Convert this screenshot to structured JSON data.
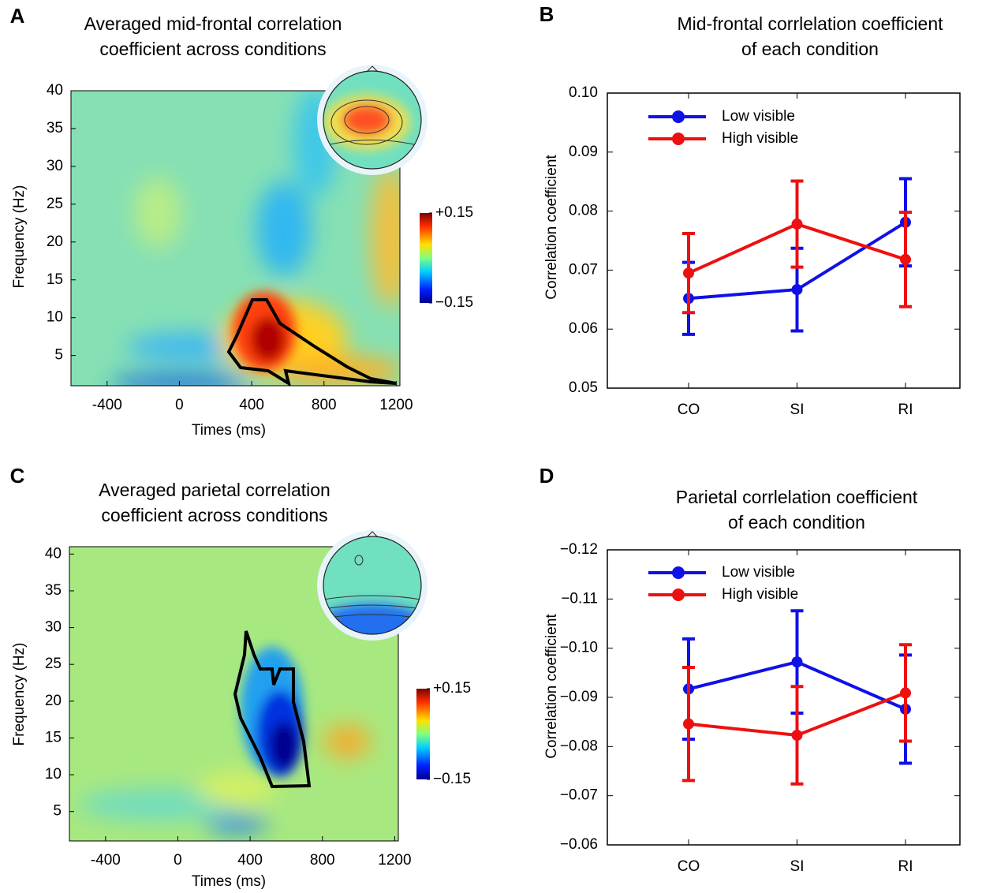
{
  "chart_data": [
    {
      "type": "heatmap",
      "panel": "A",
      "title": [
        "Averaged mid-frontal correlation",
        "coefficient across conditions"
      ],
      "xlabel": "Times (ms)",
      "ylabel": "Frequency (Hz)",
      "xlim": [
        -600,
        1220
      ],
      "xticks": [
        -400,
        0,
        400,
        800,
        1200
      ],
      "ylim": [
        1,
        40
      ],
      "yticks": [
        5,
        10,
        15,
        20,
        25,
        30,
        35,
        40
      ],
      "colorbar_ticks": [
        {
          "value": 0.15,
          "label": "+0.15"
        },
        {
          "value": -0.15,
          "label": "−0.15"
        }
      ]
    },
    {
      "type": "line",
      "panel": "B",
      "title": [
        "Mid-frontal corrlelation coefficient",
        "of each condition"
      ],
      "ylabel": "Correlation coefficient",
      "categories": [
        "CO",
        "SI",
        "RI"
      ],
      "ylim": [
        0.05,
        0.1
      ],
      "yticks": [
        0.05,
        0.06,
        0.07,
        0.08,
        0.09,
        {
          "value": 0.1,
          "label": "0.10"
        }
      ],
      "legend": "upper left",
      "series": [
        {
          "name": "Low visible",
          "color": "#1010e8",
          "values": [
            0.0652,
            0.0667,
            0.0781
          ],
          "errors": [
            0.0061,
            0.007,
            0.0074
          ]
        },
        {
          "name": "High visible",
          "color": "#ee1010",
          "values": [
            0.0695,
            0.0778,
            0.0718
          ],
          "errors": [
            0.0067,
            0.0073,
            0.008
          ]
        }
      ]
    },
    {
      "type": "heatmap",
      "panel": "C",
      "title": [
        "Averaged parietal correlation",
        "coefficient across conditions"
      ],
      "xlabel": "Times (ms)",
      "ylabel": "Frequency (Hz)",
      "xlim": [
        -600,
        1220
      ],
      "xticks": [
        -400,
        0,
        400,
        800,
        1200
      ],
      "ylim": [
        1,
        41
      ],
      "yticks": [
        5,
        10,
        15,
        20,
        25,
        30,
        35,
        40
      ],
      "colorbar_ticks": [
        {
          "value": 0.15,
          "label": "+0.15"
        },
        {
          "value": -0.15,
          "label": "−0.15"
        }
      ]
    },
    {
      "type": "line",
      "panel": "D",
      "title": [
        "Parietal corrlelation coefficient",
        "of each condition"
      ],
      "ylabel": "Correlation coefficient",
      "categories": [
        "CO",
        "SI",
        "RI"
      ],
      "ylim": [
        -0.06,
        -0.12
      ],
      "yticks": [
        {
          "value": -0.12,
          "label": "−0.12"
        },
        {
          "value": -0.11,
          "label": "−0.11"
        },
        {
          "value": -0.1,
          "label": "−0.10"
        },
        {
          "value": -0.09,
          "label": "−0.09"
        },
        {
          "value": -0.08,
          "label": "−0.08"
        },
        {
          "value": -0.07,
          "label": "−0.07"
        },
        {
          "value": -0.06,
          "label": "−0.06"
        }
      ],
      "legend": "upper left",
      "series": [
        {
          "name": "Low visible",
          "color": "#1010e8",
          "values": [
            -0.0917,
            -0.0972,
            -0.0876
          ],
          "errors": [
            0.0102,
            0.0104,
            0.011
          ]
        },
        {
          "name": "High visible",
          "color": "#ee1010",
          "values": [
            -0.0846,
            -0.0823,
            -0.0909
          ],
          "errors": [
            0.0115,
            0.0099,
            0.0098
          ]
        }
      ]
    }
  ]
}
